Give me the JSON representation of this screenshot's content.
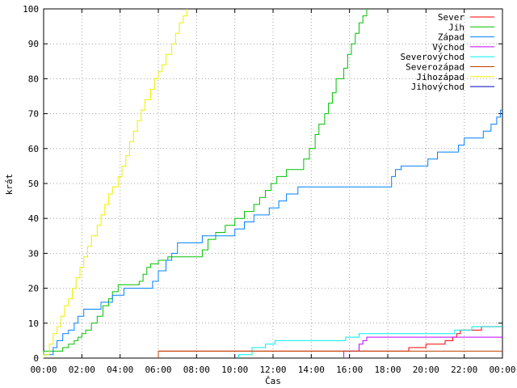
{
  "chart_data": {
    "type": "line",
    "title": "",
    "xlabel": "Čas",
    "ylabel": "krát",
    "xlim": [
      0,
      24
    ],
    "ylim": [
      0,
      100
    ],
    "x_unit": "hours",
    "x_ticks": [
      {
        "v": 0,
        "label": "00:00"
      },
      {
        "v": 2,
        "label": "02:00"
      },
      {
        "v": 4,
        "label": "04:00"
      },
      {
        "v": 6,
        "label": "06:00"
      },
      {
        "v": 8,
        "label": "08:00"
      },
      {
        "v": 10,
        "label": "10:00"
      },
      {
        "v": 12,
        "label": "12:00"
      },
      {
        "v": 14,
        "label": "14:00"
      },
      {
        "v": 16,
        "label": "16:00"
      },
      {
        "v": 18,
        "label": "18:00"
      },
      {
        "v": 20,
        "label": "20:00"
      },
      {
        "v": 22,
        "label": "22:00"
      },
      {
        "v": 24,
        "label": "00:00"
      }
    ],
    "y_ticks": [
      {
        "v": 0,
        "label": "0"
      },
      {
        "v": 10,
        "label": "10"
      },
      {
        "v": 20,
        "label": "20"
      },
      {
        "v": 30,
        "label": "30"
      },
      {
        "v": 40,
        "label": "40"
      },
      {
        "v": 50,
        "label": "50"
      },
      {
        "v": 60,
        "label": "60"
      },
      {
        "v": 70,
        "label": "70"
      },
      {
        "v": 80,
        "label": "80"
      },
      {
        "v": 90,
        "label": "90"
      },
      {
        "v": 100,
        "label": "100"
      }
    ],
    "legend": "top-right",
    "series": [
      {
        "name": "Sever",
        "color": "#ff0000",
        "points": [
          [
            6.0,
            0
          ],
          [
            6.0,
            2
          ],
          [
            19.1,
            2
          ],
          [
            19.1,
            3
          ],
          [
            20.0,
            3
          ],
          [
            20.0,
            4
          ],
          [
            21.0,
            4
          ],
          [
            21.0,
            5
          ],
          [
            21.4,
            5
          ],
          [
            21.4,
            6
          ],
          [
            21.6,
            6
          ],
          [
            21.6,
            7
          ],
          [
            21.8,
            7
          ],
          [
            21.8,
            8
          ],
          [
            22.9,
            8
          ],
          [
            22.9,
            9
          ],
          [
            24,
            9
          ]
        ]
      },
      {
        "name": "Jih",
        "color": "#00c000",
        "points": [
          [
            0.0,
            0
          ],
          [
            0.0,
            2
          ],
          [
            1.0,
            2
          ],
          [
            1.0,
            3
          ],
          [
            1.3,
            3
          ],
          [
            1.3,
            4
          ],
          [
            1.6,
            4
          ],
          [
            1.6,
            5
          ],
          [
            1.8,
            5
          ],
          [
            1.8,
            6
          ],
          [
            2.0,
            6
          ],
          [
            2.0,
            7
          ],
          [
            2.2,
            7
          ],
          [
            2.2,
            8
          ],
          [
            2.5,
            8
          ],
          [
            2.5,
            10
          ],
          [
            2.8,
            10
          ],
          [
            2.8,
            12
          ],
          [
            3.1,
            12
          ],
          [
            3.1,
            15
          ],
          [
            3.4,
            15
          ],
          [
            3.4,
            17
          ],
          [
            3.6,
            17
          ],
          [
            3.6,
            19
          ],
          [
            3.9,
            19
          ],
          [
            3.9,
            21
          ],
          [
            5.0,
            21
          ],
          [
            5.0,
            22
          ],
          [
            5.2,
            22
          ],
          [
            5.2,
            24
          ],
          [
            5.4,
            24
          ],
          [
            5.4,
            26
          ],
          [
            5.6,
            26
          ],
          [
            5.6,
            27
          ],
          [
            6.0,
            27
          ],
          [
            6.0,
            28
          ],
          [
            6.5,
            28
          ],
          [
            6.5,
            29
          ],
          [
            8.3,
            29
          ],
          [
            8.3,
            31
          ],
          [
            8.6,
            31
          ],
          [
            8.6,
            34
          ],
          [
            9.0,
            34
          ],
          [
            9.0,
            36
          ],
          [
            9.5,
            36
          ],
          [
            9.5,
            38
          ],
          [
            10.0,
            38
          ],
          [
            10.0,
            40
          ],
          [
            10.5,
            40
          ],
          [
            10.5,
            42
          ],
          [
            11.0,
            42
          ],
          [
            11.0,
            44
          ],
          [
            11.3,
            44
          ],
          [
            11.3,
            46
          ],
          [
            11.6,
            46
          ],
          [
            11.6,
            48
          ],
          [
            11.9,
            48
          ],
          [
            11.9,
            50
          ],
          [
            12.2,
            50
          ],
          [
            12.2,
            52
          ],
          [
            12.7,
            52
          ],
          [
            12.7,
            54
          ],
          [
            13.6,
            54
          ],
          [
            13.6,
            57
          ],
          [
            13.9,
            57
          ],
          [
            13.9,
            60
          ],
          [
            14.2,
            60
          ],
          [
            14.2,
            64
          ],
          [
            14.4,
            64
          ],
          [
            14.4,
            67
          ],
          [
            14.7,
            67
          ],
          [
            14.7,
            70
          ],
          [
            14.9,
            70
          ],
          [
            14.9,
            73
          ],
          [
            15.1,
            73
          ],
          [
            15.1,
            76
          ],
          [
            15.3,
            76
          ],
          [
            15.3,
            80
          ],
          [
            15.7,
            80
          ],
          [
            15.7,
            83
          ],
          [
            15.9,
            83
          ],
          [
            15.9,
            87
          ],
          [
            16.1,
            87
          ],
          [
            16.1,
            90
          ],
          [
            16.3,
            90
          ],
          [
            16.3,
            93
          ],
          [
            16.5,
            93
          ],
          [
            16.5,
            96
          ],
          [
            16.7,
            96
          ],
          [
            16.7,
            98
          ],
          [
            16.9,
            98
          ],
          [
            16.9,
            100
          ]
        ]
      },
      {
        "name": "Západ",
        "color": "#0080ff",
        "points": [
          [
            0.0,
            0
          ],
          [
            0.0,
            1
          ],
          [
            0.5,
            1
          ],
          [
            0.5,
            3
          ],
          [
            0.7,
            3
          ],
          [
            0.7,
            5
          ],
          [
            1.0,
            5
          ],
          [
            1.0,
            7
          ],
          [
            1.3,
            7
          ],
          [
            1.3,
            8
          ],
          [
            1.6,
            8
          ],
          [
            1.6,
            10
          ],
          [
            1.8,
            10
          ],
          [
            1.8,
            12
          ],
          [
            2.1,
            12
          ],
          [
            2.1,
            14
          ],
          [
            3.0,
            14
          ],
          [
            3.0,
            16
          ],
          [
            3.6,
            16
          ],
          [
            3.6,
            18
          ],
          [
            4.2,
            18
          ],
          [
            4.2,
            20
          ],
          [
            5.7,
            20
          ],
          [
            5.7,
            22
          ],
          [
            6.0,
            22
          ],
          [
            6.0,
            25
          ],
          [
            6.4,
            25
          ],
          [
            6.4,
            28
          ],
          [
            6.7,
            28
          ],
          [
            6.7,
            30
          ],
          [
            7.0,
            30
          ],
          [
            7.0,
            33
          ],
          [
            8.3,
            33
          ],
          [
            8.3,
            35
          ],
          [
            10.0,
            35
          ],
          [
            10.0,
            37
          ],
          [
            10.5,
            37
          ],
          [
            10.5,
            39
          ],
          [
            11.0,
            39
          ],
          [
            11.0,
            41
          ],
          [
            11.8,
            41
          ],
          [
            11.8,
            43
          ],
          [
            12.3,
            43
          ],
          [
            12.3,
            45
          ],
          [
            12.7,
            45
          ],
          [
            12.7,
            47
          ],
          [
            13.3,
            47
          ],
          [
            13.3,
            49
          ],
          [
            18.2,
            49
          ],
          [
            18.2,
            52
          ],
          [
            18.4,
            52
          ],
          [
            18.4,
            54
          ],
          [
            18.7,
            54
          ],
          [
            18.7,
            55
          ],
          [
            20.1,
            55
          ],
          [
            20.1,
            57
          ],
          [
            20.6,
            57
          ],
          [
            20.6,
            59
          ],
          [
            21.7,
            59
          ],
          [
            21.7,
            61
          ],
          [
            22.0,
            61
          ],
          [
            22.0,
            63
          ],
          [
            23.0,
            63
          ],
          [
            23.0,
            65
          ],
          [
            23.4,
            65
          ],
          [
            23.4,
            67
          ],
          [
            23.7,
            67
          ],
          [
            23.7,
            69
          ],
          [
            23.9,
            69
          ],
          [
            23.9,
            71
          ],
          [
            24,
            71
          ]
        ]
      },
      {
        "name": "Východ",
        "color": "#c000ff",
        "points": [
          [
            15.7,
            0
          ],
          [
            15.7,
            2
          ],
          [
            16.5,
            2
          ],
          [
            16.5,
            4
          ],
          [
            16.7,
            4
          ],
          [
            16.7,
            5
          ],
          [
            16.9,
            5
          ],
          [
            16.9,
            6
          ],
          [
            24,
            6
          ]
        ]
      },
      {
        "name": "Severovýchod",
        "color": "#00eeee",
        "points": [
          [
            10.2,
            0
          ],
          [
            10.2,
            1
          ],
          [
            10.9,
            1
          ],
          [
            10.9,
            3
          ],
          [
            11.6,
            3
          ],
          [
            11.6,
            4
          ],
          [
            12.1,
            4
          ],
          [
            12.1,
            5
          ],
          [
            15.8,
            5
          ],
          [
            15.8,
            6
          ],
          [
            16.5,
            6
          ],
          [
            16.5,
            7
          ],
          [
            21.5,
            7
          ],
          [
            21.5,
            8
          ],
          [
            22.4,
            8
          ],
          [
            22.4,
            9
          ],
          [
            24,
            9
          ]
        ]
      },
      {
        "name": "Severozápad",
        "color": "#c04000",
        "points": [
          [
            6.0,
            0
          ],
          [
            6.0,
            2
          ],
          [
            18.0,
            2
          ],
          [
            24,
            2
          ]
        ]
      },
      {
        "name": "Jihozápad",
        "color": "#eeee00",
        "points": [
          [
            0.0,
            0
          ],
          [
            0.0,
            1
          ],
          [
            0.3,
            1
          ],
          [
            0.3,
            4
          ],
          [
            0.5,
            4
          ],
          [
            0.5,
            7
          ],
          [
            0.7,
            7
          ],
          [
            0.7,
            9
          ],
          [
            0.9,
            9
          ],
          [
            0.9,
            12
          ],
          [
            1.1,
            12
          ],
          [
            1.1,
            15
          ],
          [
            1.3,
            15
          ],
          [
            1.3,
            17
          ],
          [
            1.5,
            17
          ],
          [
            1.5,
            20
          ],
          [
            1.7,
            20
          ],
          [
            1.7,
            23
          ],
          [
            1.9,
            23
          ],
          [
            1.9,
            26
          ],
          [
            2.1,
            26
          ],
          [
            2.1,
            29
          ],
          [
            2.3,
            29
          ],
          [
            2.3,
            32
          ],
          [
            2.5,
            32
          ],
          [
            2.5,
            35
          ],
          [
            2.8,
            35
          ],
          [
            2.8,
            38
          ],
          [
            3.0,
            38
          ],
          [
            3.0,
            41
          ],
          [
            3.2,
            41
          ],
          [
            3.2,
            44
          ],
          [
            3.4,
            44
          ],
          [
            3.4,
            47
          ],
          [
            3.6,
            47
          ],
          [
            3.6,
            49
          ],
          [
            3.9,
            49
          ],
          [
            3.9,
            52
          ],
          [
            4.1,
            52
          ],
          [
            4.1,
            55
          ],
          [
            4.3,
            55
          ],
          [
            4.3,
            58
          ],
          [
            4.5,
            58
          ],
          [
            4.5,
            62
          ],
          [
            4.7,
            62
          ],
          [
            4.7,
            65
          ],
          [
            4.9,
            65
          ],
          [
            4.9,
            68
          ],
          [
            5.1,
            68
          ],
          [
            5.1,
            71
          ],
          [
            5.3,
            71
          ],
          [
            5.3,
            74
          ],
          [
            5.6,
            74
          ],
          [
            5.6,
            77
          ],
          [
            5.8,
            77
          ],
          [
            5.8,
            80
          ],
          [
            6.0,
            80
          ],
          [
            6.0,
            82
          ],
          [
            6.2,
            82
          ],
          [
            6.2,
            84
          ],
          [
            6.4,
            84
          ],
          [
            6.4,
            87
          ],
          [
            6.7,
            87
          ],
          [
            6.7,
            90
          ],
          [
            6.9,
            90
          ],
          [
            6.9,
            93
          ],
          [
            7.1,
            93
          ],
          [
            7.1,
            96
          ],
          [
            7.3,
            96
          ],
          [
            7.3,
            98
          ],
          [
            7.5,
            98
          ],
          [
            7.5,
            100
          ]
        ]
      },
      {
        "name": "Jihovýchod",
        "color": "#0000c0",
        "points": []
      }
    ]
  }
}
